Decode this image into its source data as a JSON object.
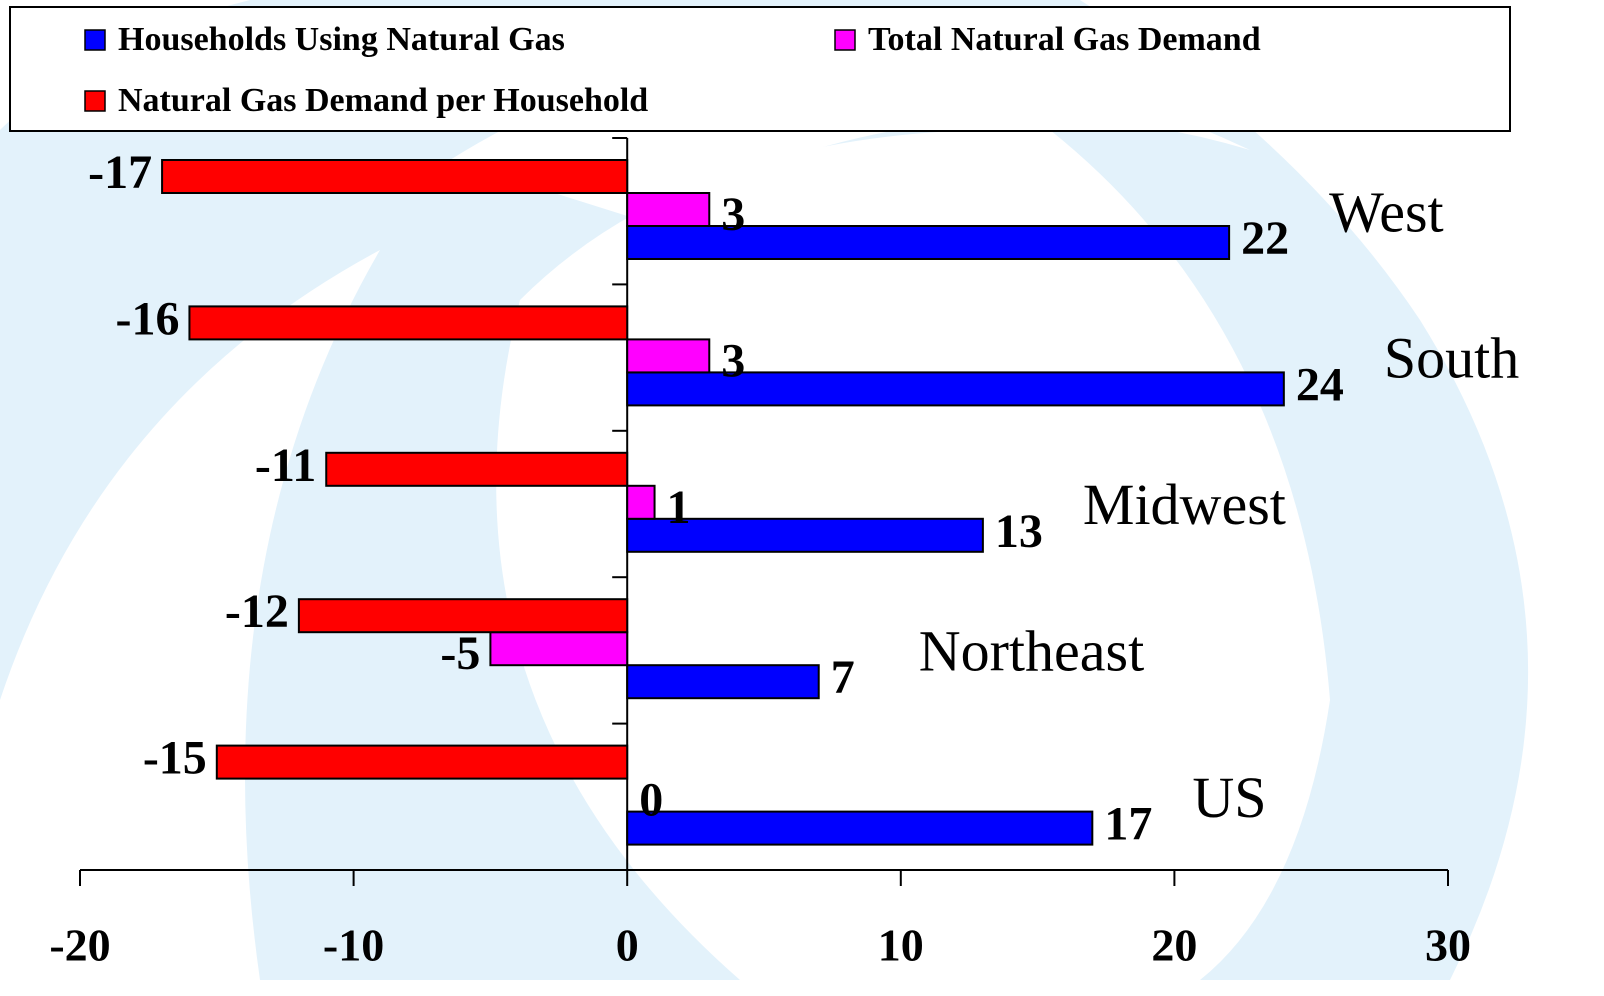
{
  "chart_data": {
    "type": "bar",
    "orientation": "horizontal",
    "categories": [
      "West",
      "South",
      "Midwest",
      "Northeast",
      "US"
    ],
    "series": [
      {
        "name": "Households Using Natural Gas",
        "color": "#0000ff",
        "values": [
          22,
          24,
          13,
          7,
          17
        ]
      },
      {
        "name": "Total Natural Gas Demand",
        "color": "#ff00ff",
        "values": [
          3,
          3,
          1,
          -5,
          0
        ]
      },
      {
        "name": "Natural Gas Demand per Household",
        "color": "#ff0000",
        "values": [
          -17,
          -16,
          -11,
          -12,
          -15
        ]
      }
    ],
    "xlim": [
      -20,
      30
    ],
    "xticks": [
      -20,
      -10,
      0,
      10,
      20,
      30
    ],
    "grid": false
  }
}
